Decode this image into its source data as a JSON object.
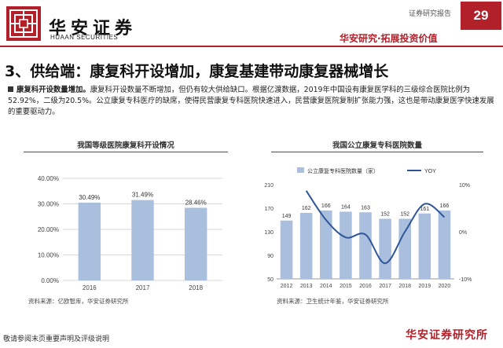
{
  "header": {
    "logo_cn": "华安证券",
    "logo_en": "HUAAN SECURITIES",
    "report_label": "证券研究报告",
    "page_number": "29",
    "tagline": "华安研究·拓展投资价值",
    "brand_color": "#b2202a"
  },
  "section": {
    "title": "3、供给端：康复科开设增加，康复基建带动康复器械增长",
    "paragraph_lead": "康复科开设数量增加。",
    "paragraph_body": "康复科开设数量不断增加，但仍有较大供给缺口。根据亿渡数据，2019年中国设有康复医学科的三级综合医院比例为52.92%，二级为20.5%。公立康复专科医疗的缺席，使得民营康复专科医院快速进入，民营康复医院复制扩张能力强，这也是带动康复医学快速发展的重要驱动力。"
  },
  "left_chart": {
    "title": "我国等级医院康复科开设情况",
    "source": "资料来源：亿欧智库，华安证券研究所"
  },
  "right_chart": {
    "title": "我国公立康复专科医院数量",
    "source": "资料来源：卫生统计年鉴，华安证券研究所"
  },
  "chart_data": [
    {
      "type": "bar",
      "categories": [
        "2016",
        "2017",
        "2018"
      ],
      "values": [
        30.49,
        31.49,
        28.46
      ],
      "data_labels": [
        "30.49%",
        "31.49%",
        "28.46%"
      ],
      "ylim": [
        0,
        40
      ],
      "yticks": [
        "0.00%",
        "10.00%",
        "20.00%",
        "30.00%",
        "40.00%"
      ],
      "grid": true,
      "bar_color": "#a9bfdd"
    },
    {
      "type": "bar+line",
      "categories": [
        "2012",
        "2013",
        "2014",
        "2015",
        "2016",
        "2017",
        "2018",
        "2019",
        "2020"
      ],
      "series": [
        {
          "name": "公立康复专科医院数量（家）",
          "type": "bar",
          "axis": "left",
          "values": [
            149,
            162,
            166,
            164,
            163,
            152,
            152,
            161,
            166
          ],
          "color": "#a9bfdd"
        },
        {
          "name": "YOY",
          "type": "line",
          "axis": "right",
          "values": [
            null,
            8.7,
            2.5,
            -1.2,
            -0.6,
            -6.7,
            0.0,
            5.9,
            3.1
          ],
          "color": "#2e5597"
        }
      ],
      "ylim_left": [
        50,
        210
      ],
      "yticks_left": [
        "50",
        "90",
        "130",
        "170",
        "210"
      ],
      "ylim_right": [
        -10,
        10
      ],
      "yticks_right": [
        "-10%",
        "0%",
        "10%"
      ],
      "legend_position": "top"
    }
  ],
  "footer": {
    "disclaimer": "敬请参阅末页重要声明及评级说明",
    "brand": "华安证券研究所"
  }
}
